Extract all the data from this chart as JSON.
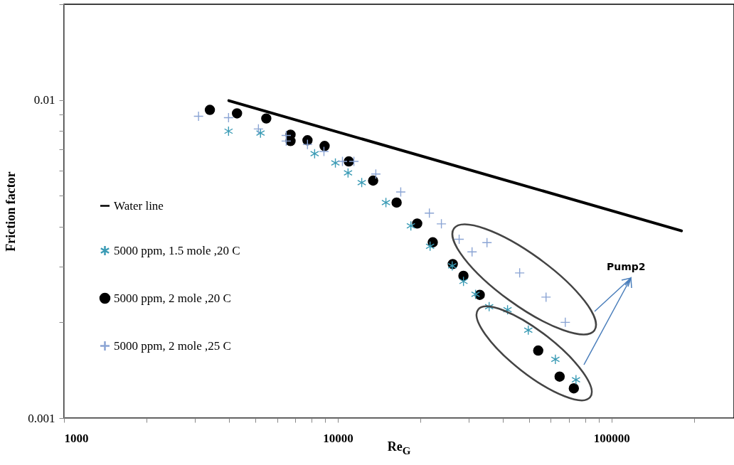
{
  "chart_data": {
    "type": "scatter",
    "xlabel": "Re$_{G}$",
    "ylabel": "Friction factor",
    "log": "xy",
    "legend": "left",
    "xlim": [
      1000,
      280000
    ],
    "ylim": [
      0.001,
      0.02
    ],
    "xticks": [
      1000,
      {
        "value": 2000,
        "label": null
      },
      {
        "value": 3000,
        "label": null
      },
      {
        "value": 4000,
        "label": null
      },
      {
        "value": 5000,
        "label": null
      },
      {
        "value": 6000,
        "label": null
      },
      {
        "value": 7000,
        "label": null
      },
      {
        "value": 8000,
        "label": null
      },
      {
        "value": 9000,
        "label": null
      },
      10000,
      {
        "value": 20000,
        "label": null
      },
      {
        "value": 30000,
        "label": null
      },
      {
        "value": 40000,
        "label": null
      },
      {
        "value": 50000,
        "label": null
      },
      {
        "value": 60000,
        "label": null
      },
      {
        "value": 70000,
        "label": null
      },
      {
        "value": 80000,
        "label": null
      },
      {
        "value": 90000,
        "label": null
      },
      100000,
      {
        "value": 200000,
        "label": null
      }
    ],
    "yticks": [
      0.001,
      {
        "value": 0.002,
        "label": null
      },
      {
        "value": 0.003,
        "label": null
      },
      {
        "value": 0.004,
        "label": null
      },
      {
        "value": 0.005,
        "label": null
      },
      {
        "value": 0.006,
        "label": null
      },
      {
        "value": 0.007,
        "label": null
      },
      {
        "value": 0.008,
        "label": null
      },
      {
        "value": 0.009,
        "label": null
      },
      0.01,
      {
        "value": 0.02,
        "label": null
      }
    ],
    "annotations": [
      "Pump2"
    ],
    "series": [
      {
        "name": "Water line",
        "type": "line",
        "line_style": "solid",
        "color": "#000000",
        "x": [
          4000,
          180000
        ],
        "values": [
          0.00995,
          0.00388
        ]
      },
      {
        "name": "5000 ppm, 1.5 mole ,20 C",
        "color": "#3a9bb5",
        "x": [
          3990,
          5220,
          8230,
          9800,
          10900,
          12230,
          14990,
          18490,
          21730,
          26180,
          28780,
          31850,
          35710,
          41690,
          49630,
          62340,
          74130
        ],
        "values": [
          0.00798,
          0.00787,
          0.00678,
          0.00634,
          0.0059,
          0.0055,
          0.00476,
          0.00402,
          0.00347,
          0.00301,
          0.00269,
          0.00245,
          0.00224,
          0.00219,
          0.00189,
          0.00153,
          0.00132
        ]
      },
      {
        "name": "5000 ppm, 2 mole ,20 C",
        "marker": "circle",
        "color": "#000000",
        "x": [
          3410,
          4285,
          5480,
          6720,
          6720,
          7750,
          8950,
          10970,
          13460,
          16400,
          19500,
          22230,
          26300,
          28770,
          33000,
          53950,
          64600,
          72800
        ],
        "values": [
          0.00931,
          0.00908,
          0.00875,
          0.00778,
          0.00743,
          0.00747,
          0.00717,
          0.00641,
          0.00558,
          0.00476,
          0.00409,
          0.00357,
          0.00305,
          0.0028,
          0.00244,
          0.00163,
          0.00135,
          0.00124
        ]
      },
      {
        "name": "5000 ppm, 2 mole ,25 C",
        "marker": "cross",
        "color": "#8aa4d4",
        "x": [
          3100,
          3990,
          5130,
          6480,
          6480,
          7750,
          8900,
          10400,
          11450,
          13770,
          16980,
          21600,
          23900,
          27750,
          30930,
          35070,
          46160,
          57630,
          67750
        ],
        "values": [
          0.00889,
          0.0088,
          0.00811,
          0.00774,
          0.00743,
          0.00725,
          0.00689,
          0.00641,
          0.00641,
          0.00585,
          0.00514,
          0.00441,
          0.00408,
          0.00365,
          0.00333,
          0.00356,
          0.00286,
          0.0024,
          0.002
        ]
      }
    ]
  }
}
